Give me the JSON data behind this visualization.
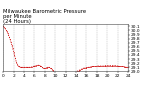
{
  "title": "Milwaukee Barometric Pressure\nper Minute\n(24 Hours)",
  "title_fontsize": 3.8,
  "line_color": "#cc0000",
  "bg_color": "#ffffff",
  "plot_bg_color": "#ffffff",
  "grid_color": "#999999",
  "ylim": [
    29.0,
    30.15
  ],
  "yticks": [
    29.0,
    29.1,
    29.2,
    29.3,
    29.4,
    29.5,
    29.6,
    29.7,
    29.8,
    29.9,
    30.0,
    30.1
  ],
  "pressure_values": [
    30.1,
    30.08,
    30.05,
    30.02,
    29.99,
    29.95,
    29.9,
    29.84,
    29.78,
    29.71,
    29.64,
    29.56,
    29.48,
    29.4,
    29.32,
    29.24,
    29.18,
    29.14,
    29.12,
    29.11,
    29.1,
    29.1,
    29.1,
    29.1,
    29.1,
    29.1,
    29.1,
    29.1,
    29.1,
    29.1,
    29.1,
    29.1,
    29.1,
    29.11,
    29.12,
    29.12,
    29.13,
    29.14,
    29.14,
    29.15,
    29.15,
    29.15,
    29.14,
    29.13,
    29.12,
    29.1,
    29.08,
    29.07,
    29.07,
    29.08,
    29.09,
    29.1,
    29.1,
    29.1,
    29.09,
    29.08,
    29.06,
    29.03,
    29.0,
    28.97,
    28.94,
    28.91,
    28.88,
    28.86,
    28.86,
    28.86,
    28.86,
    28.86,
    28.86,
    28.86,
    28.86,
    28.86,
    28.87,
    28.88,
    28.89,
    28.9,
    28.91,
    28.92,
    28.93,
    28.94,
    28.95,
    28.96,
    28.97,
    28.98,
    28.99,
    29.0,
    29.01,
    29.02,
    29.03,
    29.04,
    29.05,
    29.06,
    29.07,
    29.08,
    29.08,
    29.09,
    29.09,
    29.1,
    29.1,
    29.1,
    29.11,
    29.11,
    29.12,
    29.12,
    29.12,
    29.12,
    29.12,
    29.12,
    29.12,
    29.13,
    29.13,
    29.13,
    29.13,
    29.13,
    29.13,
    29.13,
    29.13,
    29.13,
    29.14,
    29.14,
    29.14,
    29.14,
    29.14,
    29.14,
    29.14,
    29.14,
    29.14,
    29.14,
    29.14,
    29.14,
    29.14,
    29.13,
    29.13,
    29.13,
    29.12,
    29.12,
    29.12,
    29.12,
    29.12,
    29.11,
    29.11,
    29.11,
    29.1,
    29.1,
    29.1
  ],
  "x_count": 145,
  "xtick_positions": [
    0,
    12,
    24,
    36,
    48,
    60,
    72,
    84,
    96,
    108,
    120,
    132,
    144
  ],
  "xtick_labels": [
    "0",
    "2",
    "4",
    "6",
    "8",
    "10",
    "12",
    "14",
    "16",
    "18",
    "20",
    "22",
    "24"
  ],
  "xtick_fontsize": 3.2,
  "ytick_fontsize": 3.2,
  "linewidth": 0.5,
  "markersize": 1.0
}
